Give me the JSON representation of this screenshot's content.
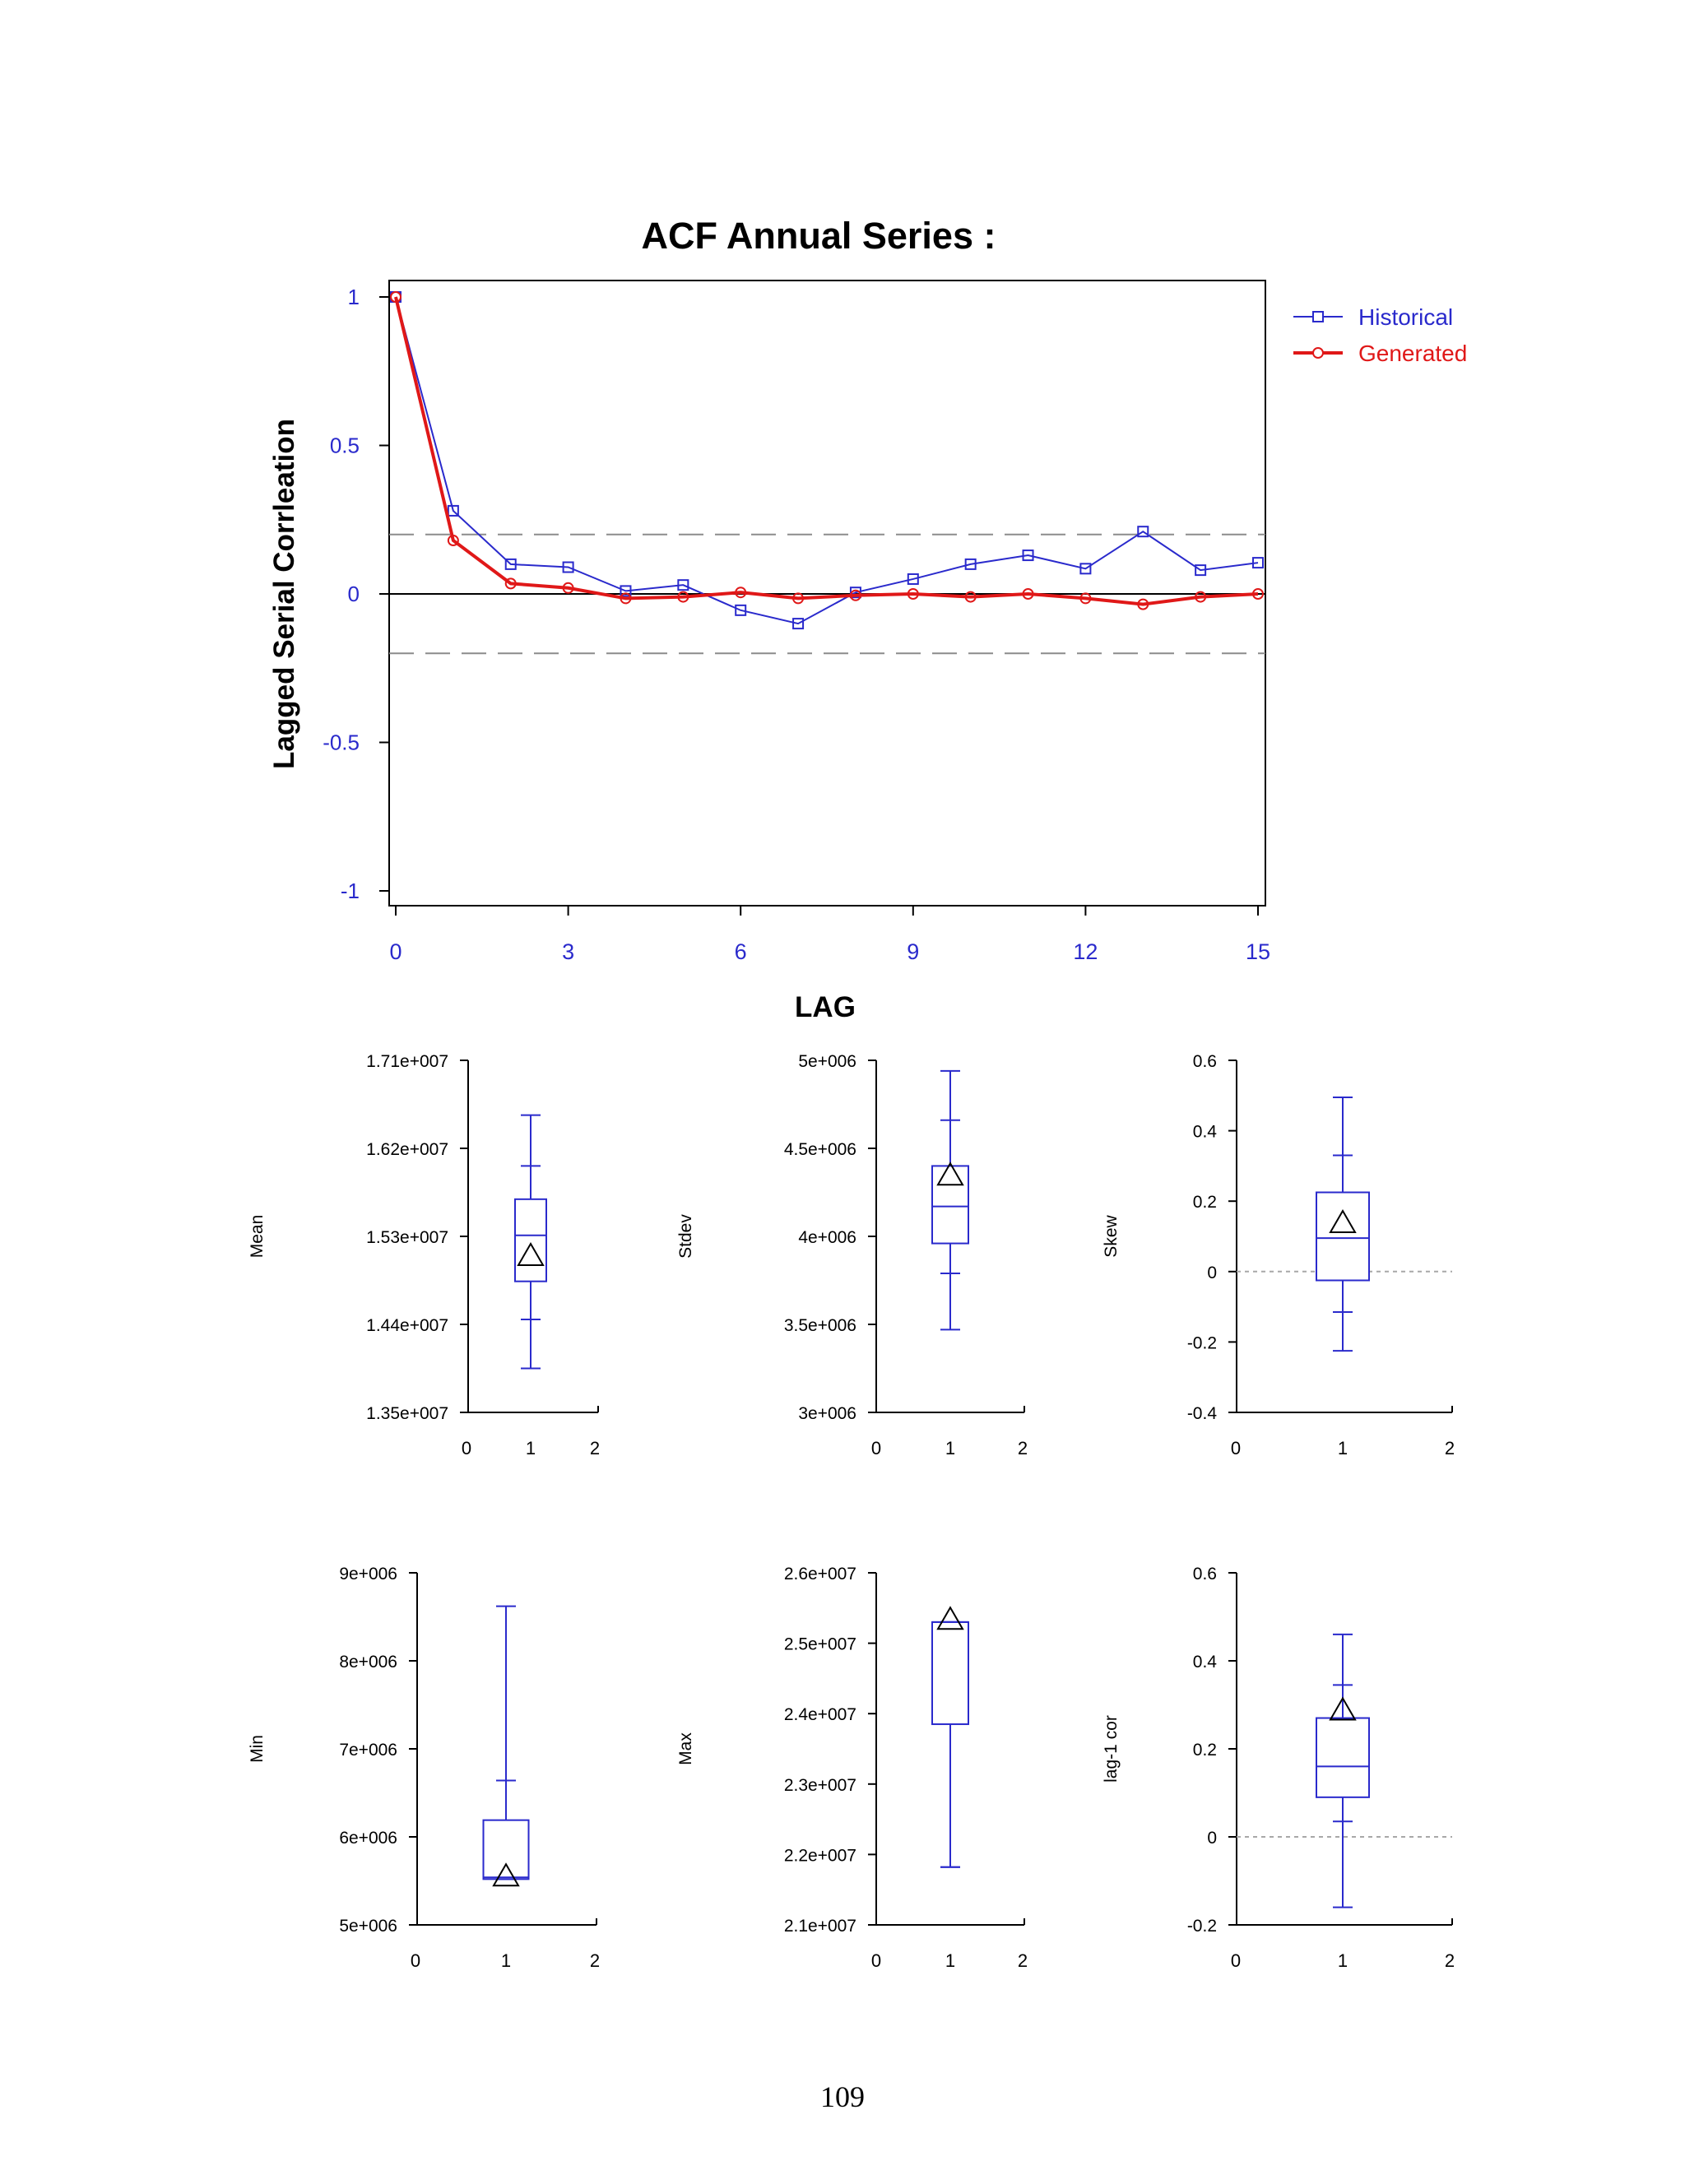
{
  "page": {
    "number": "109"
  },
  "colors": {
    "historical": "#2a2acc",
    "generated": "#e01818",
    "box": "#2a2acc",
    "axis": "#000000",
    "band": "#8c8c8c",
    "zero": "#000000",
    "dotted": "#a8a8a8"
  },
  "chart_data": [
    {
      "id": "acf",
      "type": "line",
      "title": "ACF Annual Series :",
      "xlabel": "LAG",
      "ylabel": "Lagged Serial Corrleation",
      "xlim": [
        0,
        15
      ],
      "ylim": [
        -1,
        1
      ],
      "xticks": [
        "0",
        "3",
        "6",
        "9",
        "12",
        "15"
      ],
      "yticks": [
        "1",
        "0.5",
        "0",
        "-0.5",
        "-1"
      ],
      "xtick_values": [
        0,
        3,
        6,
        9,
        12,
        15
      ],
      "ytick_values": [
        1,
        0.5,
        0,
        -0.5,
        -1
      ],
      "confidence_band": [
        0.2,
        -0.2
      ],
      "x": [
        0,
        1,
        2,
        3,
        4,
        5,
        6,
        7,
        8,
        9,
        10,
        11,
        12,
        13,
        14,
        15
      ],
      "series": [
        {
          "name": "Historical",
          "marker": "square",
          "values": [
            1.0,
            0.28,
            0.1,
            0.09,
            0.01,
            0.03,
            -0.055,
            -0.1,
            0.005,
            0.05,
            0.1,
            0.13,
            0.085,
            0.21,
            0.08,
            0.105
          ]
        },
        {
          "name": "Generated",
          "marker": "circle",
          "values": [
            1.0,
            0.18,
            0.035,
            0.02,
            -0.015,
            -0.01,
            0.005,
            -0.015,
            -0.005,
            0.0,
            -0.01,
            0.0,
            -0.015,
            -0.035,
            -0.01,
            0.0
          ]
        }
      ],
      "legend": [
        "Historical",
        "Generated"
      ]
    },
    {
      "id": "mean",
      "type": "box",
      "ylabel": "Mean",
      "ylim": [
        13500000,
        17100000
      ],
      "yticks": [
        "1.71e+007",
        "1.62e+007",
        "1.53e+007",
        "1.44e+007",
        "1.35e+007"
      ],
      "ytick_values": [
        17100000,
        16200000,
        15300000,
        14400000,
        13500000
      ],
      "xticks": [
        "0",
        "1",
        "2"
      ],
      "xlim": [
        0,
        2
      ],
      "box": {
        "whisker_low": 13950000,
        "fence_low": 14450000,
        "q1": 14840000,
        "median": 15310000,
        "q3": 15680000,
        "fence_high": 16020000,
        "whisker_high": 16540000
      },
      "historical": 15090000,
      "zero_line": false
    },
    {
      "id": "stdev",
      "type": "box",
      "ylabel": "Stdev",
      "ylim": [
        3000000,
        5000000
      ],
      "yticks": [
        "5e+006",
        "4.5e+006",
        "4e+006",
        "3.5e+006",
        "3e+006"
      ],
      "ytick_values": [
        5000000,
        4500000,
        4000000,
        3500000,
        3000000
      ],
      "xticks": [
        "0",
        "1",
        "2"
      ],
      "xlim": [
        0,
        2
      ],
      "box": {
        "whisker_low": 3470000,
        "fence_low": 3790000,
        "q1": 3960000,
        "median": 4170000,
        "q3": 4400000,
        "fence_high": 4660000,
        "whisker_high": 4940000
      },
      "historical": 4340000,
      "zero_line": false
    },
    {
      "id": "skew",
      "type": "box",
      "ylabel": "Skew",
      "ylim": [
        -0.4,
        0.6
      ],
      "yticks": [
        "0.6",
        "0.4",
        "0.2",
        "0",
        "-0.2",
        "-0.4"
      ],
      "ytick_values": [
        0.6,
        0.4,
        0.2,
        0,
        -0.2,
        -0.4
      ],
      "xticks": [
        "0",
        "1",
        "2"
      ],
      "xlim": [
        0,
        2
      ],
      "box": {
        "whisker_low": -0.225,
        "fence_low": -0.115,
        "q1": -0.025,
        "median": 0.095,
        "q3": 0.225,
        "fence_high": 0.33,
        "whisker_high": 0.495
      },
      "historical": 0.135,
      "zero_line": true
    },
    {
      "id": "min",
      "type": "box",
      "ylabel": "Min",
      "ylim": [
        5000000,
        9000000
      ],
      "yticks": [
        "9e+006",
        "8e+006",
        "7e+006",
        "6e+006",
        "5e+006"
      ],
      "ytick_values": [
        9000000,
        8000000,
        7000000,
        6000000,
        5000000
      ],
      "xticks": [
        "0",
        "1",
        "2"
      ],
      "xlim": [
        0,
        2
      ],
      "box": {
        "whisker_low": 5520000,
        "fence_low": 5520000,
        "q1": 5520000,
        "median": 5540000,
        "q3": 6190000,
        "fence_high": 6640000,
        "whisker_high": 8620000
      },
      "historical": 5540000,
      "zero_line": false
    },
    {
      "id": "max",
      "type": "box",
      "ylabel": "Max",
      "ylim": [
        21000000,
        26000000
      ],
      "yticks": [
        "2.6e+007",
        "2.5e+007",
        "2.4e+007",
        "2.3e+007",
        "2.2e+007",
        "2.1e+007"
      ],
      "ytick_values": [
        26000000,
        25000000,
        24000000,
        23000000,
        22000000,
        21000000
      ],
      "xticks": [
        "0",
        "1",
        "2"
      ],
      "xlim": [
        0,
        2
      ],
      "box": {
        "whisker_low": 21820000,
        "fence_low": 21820000,
        "q1": 23850000,
        "median": 25300000,
        "q3": 25300000,
        "fence_high": 25300000,
        "whisker_high": 25300000
      },
      "historical": 25320000,
      "zero_line": false
    },
    {
      "id": "lag1",
      "type": "box",
      "ylabel": "lag-1 cor",
      "ylim": [
        -0.2,
        0.6
      ],
      "yticks": [
        "0.6",
        "0.4",
        "0.2",
        "0",
        "-0.2"
      ],
      "ytick_values": [
        0.6,
        0.4,
        0.2,
        0,
        -0.2
      ],
      "xticks": [
        "0",
        "1",
        "2"
      ],
      "xlim": [
        0,
        2
      ],
      "box": {
        "whisker_low": -0.16,
        "fence_low": 0.035,
        "q1": 0.09,
        "median": 0.16,
        "q3": 0.27,
        "fence_high": 0.345,
        "whisker_high": 0.46
      },
      "historical": 0.285,
      "zero_line": true
    }
  ]
}
